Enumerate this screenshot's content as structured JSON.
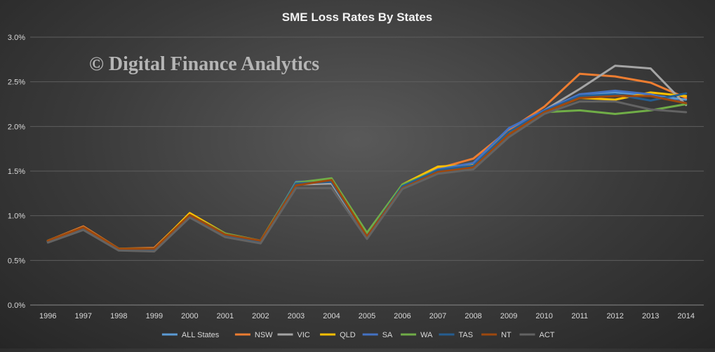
{
  "watermark": "© Digital Finance Analytics",
  "colors": {
    "ALL States": "#5b9bd5",
    "NSW": "#ed7d31",
    "VIC": "#a5a5a5",
    "QLD": "#ffc000",
    "SA": "#4472c4",
    "WA": "#70ad47",
    "TAS": "#255e91",
    "NT": "#9e480e",
    "ACT": "#636363"
  },
  "chart_data": {
    "type": "line",
    "title": "SME Loss Rates By States",
    "xlabel": "",
    "ylabel": "",
    "ylim": [
      0,
      0.03
    ],
    "y_ticks": [
      "0.0%",
      "0.5%",
      "1.0%",
      "1.5%",
      "2.0%",
      "2.5%",
      "3.0%"
    ],
    "grid": true,
    "legend_position": "bottom",
    "categories": [
      "1996",
      "1997",
      "1998",
      "1999",
      "2000",
      "2001",
      "2002",
      "2003",
      "2004",
      "2005",
      "2006",
      "2007",
      "2008",
      "2009",
      "2010",
      "2011",
      "2012",
      "2013",
      "2014"
    ],
    "series": [
      {
        "name": "ALL States",
        "values": [
          0.0071,
          0.0086,
          0.0062,
          0.0063,
          0.01,
          0.0079,
          0.0071,
          0.0136,
          0.0138,
          0.0077,
          0.0133,
          0.0152,
          0.0158,
          0.0195,
          0.0217,
          0.0236,
          0.0238,
          0.0235,
          0.023
        ]
      },
      {
        "name": "NSW",
        "values": [
          0.0072,
          0.0088,
          0.0063,
          0.0064,
          0.0102,
          0.008,
          0.0072,
          0.0137,
          0.0139,
          0.0078,
          0.0134,
          0.0153,
          0.0164,
          0.0196,
          0.0222,
          0.0259,
          0.0256,
          0.0249,
          0.0232
        ]
      },
      {
        "name": "VIC",
        "values": [
          0.0071,
          0.0086,
          0.0062,
          0.0062,
          0.01,
          0.0078,
          0.007,
          0.0135,
          0.0136,
          0.0076,
          0.0132,
          0.0151,
          0.0156,
          0.0193,
          0.0218,
          0.0242,
          0.0268,
          0.0265,
          0.0224
        ]
      },
      {
        "name": "QLD",
        "values": [
          0.0072,
          0.0087,
          0.0063,
          0.0063,
          0.0103,
          0.008,
          0.0071,
          0.0136,
          0.0139,
          0.0078,
          0.0135,
          0.0155,
          0.0157,
          0.0194,
          0.0216,
          0.0232,
          0.023,
          0.0238,
          0.0234
        ]
      },
      {
        "name": "SA",
        "values": [
          0.0071,
          0.0086,
          0.0062,
          0.0063,
          0.01,
          0.0079,
          0.0071,
          0.0138,
          0.0139,
          0.0078,
          0.0134,
          0.0152,
          0.0159,
          0.0198,
          0.0218,
          0.0236,
          0.024,
          0.0236,
          0.0226
        ]
      },
      {
        "name": "WA",
        "values": [
          0.0072,
          0.0087,
          0.0063,
          0.0063,
          0.0101,
          0.008,
          0.0072,
          0.0137,
          0.0142,
          0.0081,
          0.0135,
          0.0151,
          0.0156,
          0.0192,
          0.0216,
          0.0218,
          0.0214,
          0.0218,
          0.0225
        ]
      },
      {
        "name": "TAS",
        "values": [
          0.0071,
          0.0086,
          0.0062,
          0.0062,
          0.01,
          0.0078,
          0.0071,
          0.0136,
          0.0138,
          0.0077,
          0.0133,
          0.0151,
          0.0156,
          0.0194,
          0.0217,
          0.0234,
          0.0236,
          0.0229,
          0.0237
        ]
      },
      {
        "name": "NT",
        "values": [
          0.0072,
          0.0087,
          0.0063,
          0.0063,
          0.0101,
          0.0079,
          0.0072,
          0.0134,
          0.014,
          0.0077,
          0.0131,
          0.0149,
          0.0154,
          0.0191,
          0.0216,
          0.0232,
          0.0234,
          0.0234,
          0.0226
        ]
      },
      {
        "name": "ACT",
        "values": [
          0.007,
          0.0084,
          0.0061,
          0.006,
          0.0098,
          0.0076,
          0.0069,
          0.0131,
          0.0131,
          0.0074,
          0.013,
          0.0147,
          0.0152,
          0.0188,
          0.0214,
          0.0228,
          0.0228,
          0.0219,
          0.0216
        ]
      }
    ]
  }
}
